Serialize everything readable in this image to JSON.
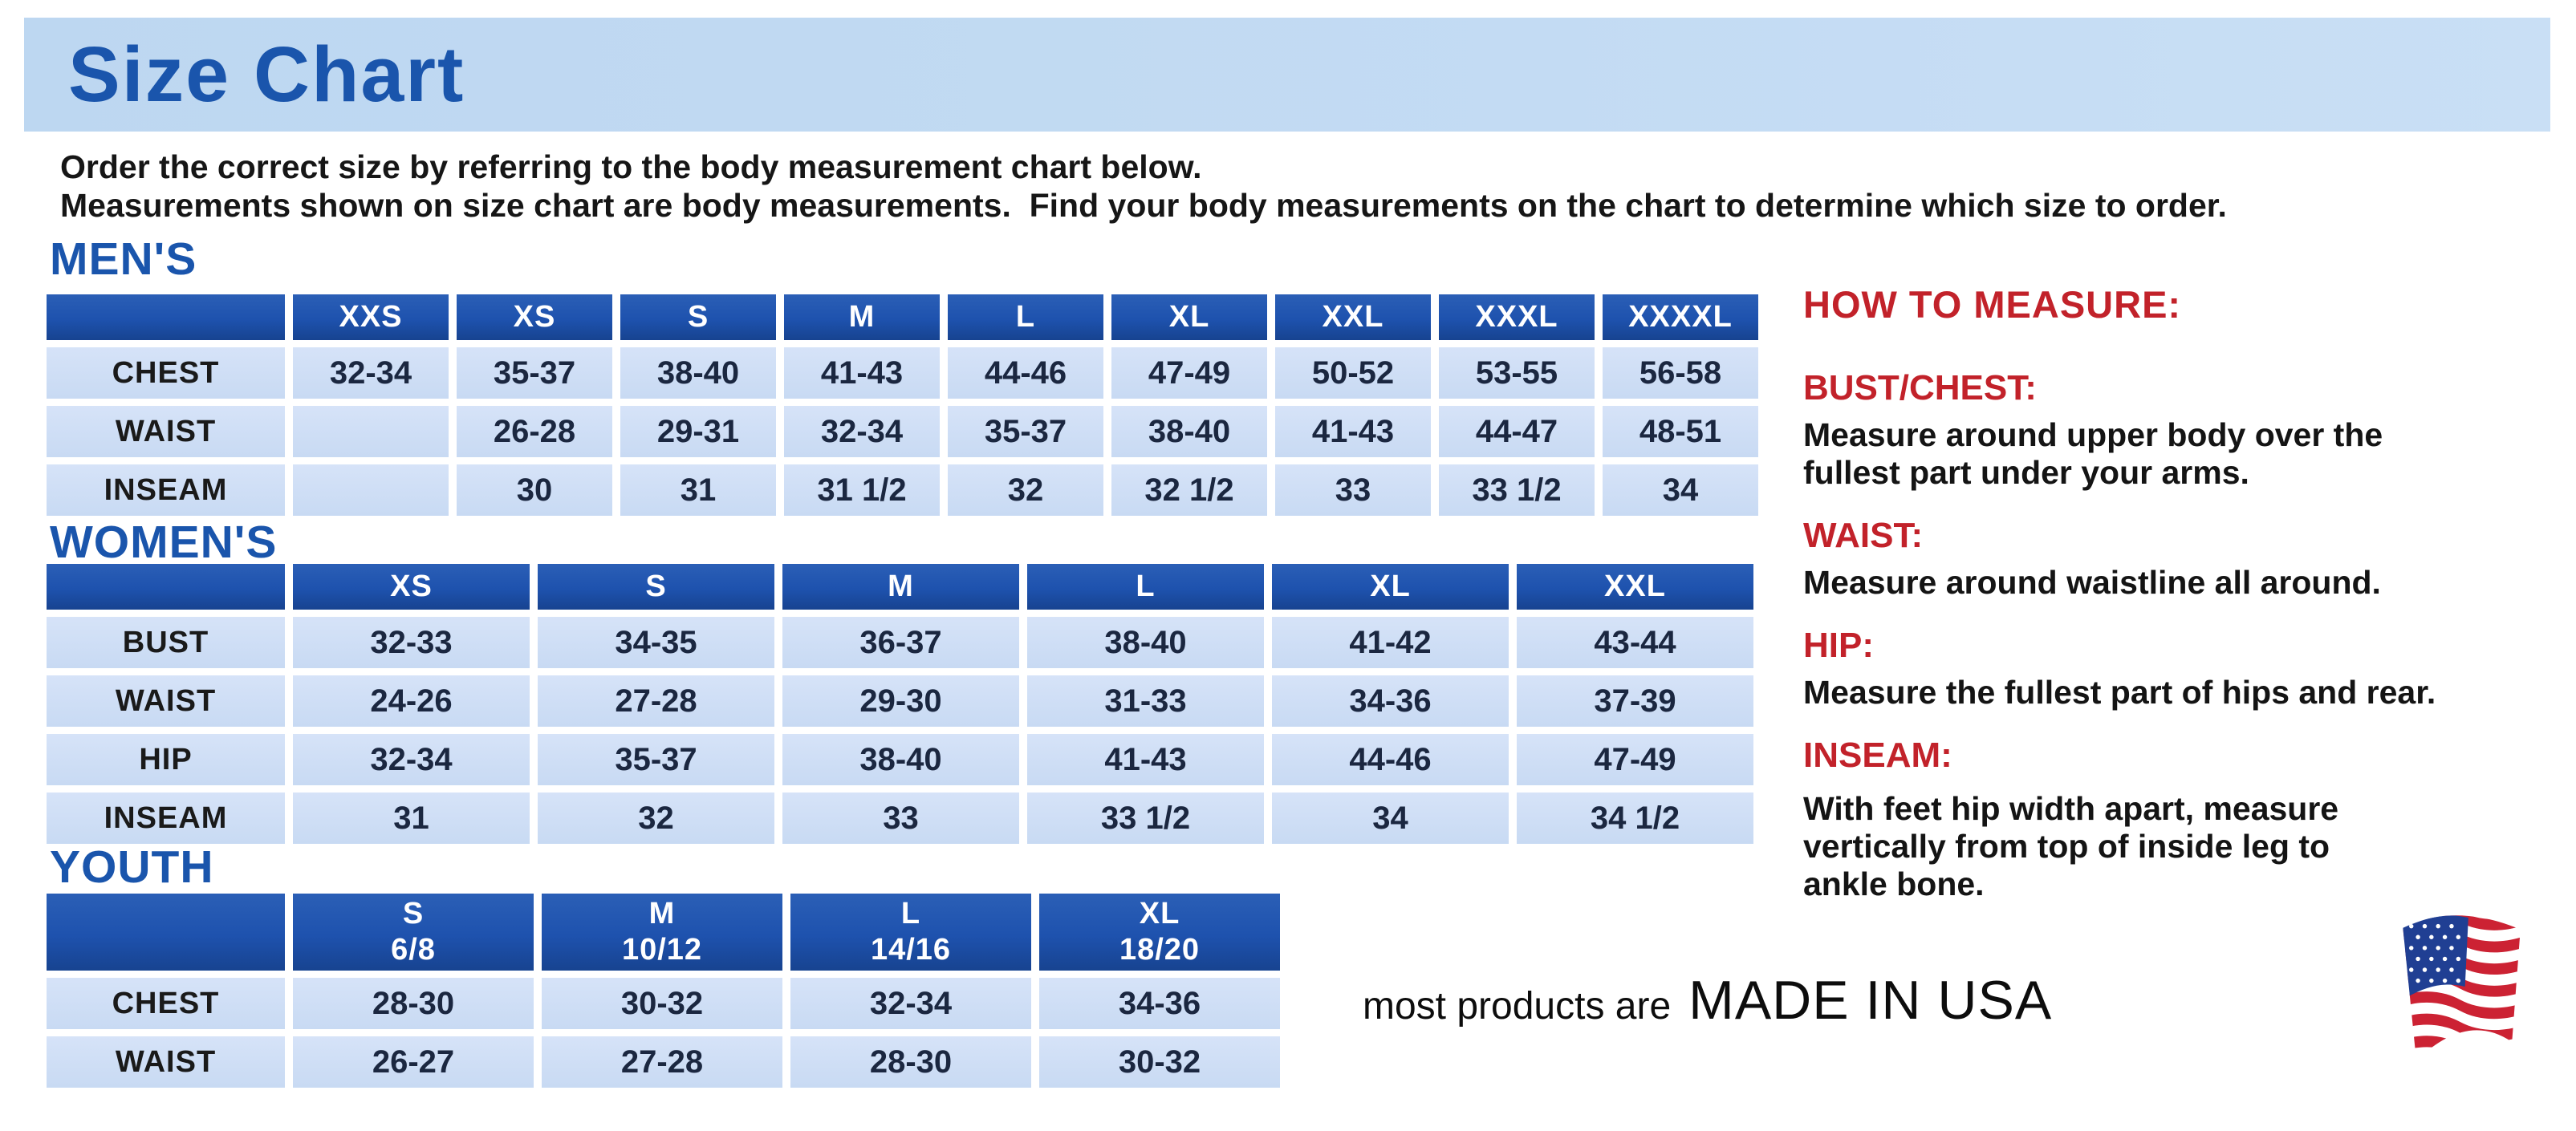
{
  "page": {
    "title": "Size Chart",
    "intro_line1": "Order the correct size by referring to the body measurement chart below.",
    "intro_line2": "Measurements shown on size chart are body measurements.  Find your body measurements on the chart to determine which size to order."
  },
  "colors": {
    "accent_blue": "#1a55ac",
    "header_blue": "#1e52ae",
    "cell_light_blue": "#cbdcf4",
    "value_navy": "#1b2740",
    "heading_red": "#c2222a"
  },
  "tables": {
    "mens": {
      "heading": "MEN'S",
      "columns": [
        "XXS",
        "XS",
        "S",
        "M",
        "L",
        "XL",
        "XXL",
        "XXXL",
        "XXXXL"
      ],
      "rows": [
        {
          "label": "CHEST",
          "values": [
            "32-34",
            "35-37",
            "38-40",
            "41-43",
            "44-46",
            "47-49",
            "50-52",
            "53-55",
            "56-58"
          ]
        },
        {
          "label": "WAIST",
          "values": [
            "",
            "26-28",
            "29-31",
            "32-34",
            "35-37",
            "38-40",
            "41-43",
            "44-47",
            "48-51"
          ]
        },
        {
          "label": "INSEAM",
          "values": [
            "",
            "30",
            "31",
            "31 1/2",
            "32",
            "32 1/2",
            "33",
            "33 1/2",
            "34"
          ]
        }
      ]
    },
    "womens": {
      "heading": "WOMEN'S",
      "columns": [
        "XS",
        "S",
        "M",
        "L",
        "XL",
        "XXL"
      ],
      "rows": [
        {
          "label": "BUST",
          "values": [
            "32-33",
            "34-35",
            "36-37",
            "38-40",
            "41-42",
            "43-44"
          ]
        },
        {
          "label": "WAIST",
          "values": [
            "24-26",
            "27-28",
            "29-30",
            "31-33",
            "34-36",
            "37-39"
          ]
        },
        {
          "label": "HIP",
          "values": [
            "32-34",
            "35-37",
            "38-40",
            "41-43",
            "44-46",
            "47-49"
          ]
        },
        {
          "label": "INSEAM",
          "values": [
            "31",
            "32",
            "33",
            "33 1/2",
            "34",
            "34 1/2"
          ]
        }
      ]
    },
    "youth": {
      "heading": "YOUTH",
      "columns": [
        {
          "label": "S",
          "sub": "6/8"
        },
        {
          "label": "M",
          "sub": "10/12"
        },
        {
          "label": "L",
          "sub": "14/16"
        },
        {
          "label": "XL",
          "sub": "18/20"
        }
      ],
      "rows": [
        {
          "label": "CHEST",
          "values": [
            "28-30",
            "30-32",
            "32-34",
            "34-36"
          ]
        },
        {
          "label": "WAIST",
          "values": [
            "26-27",
            "27-28",
            "28-30",
            "30-32"
          ]
        }
      ]
    }
  },
  "how_to_measure": {
    "heading": "HOW TO MEASURE:",
    "items": [
      {
        "label": "BUST/CHEST:",
        "text": "Measure around upper body over the\nfullest part under your arms."
      },
      {
        "label": "WAIST:",
        "text": "Measure around waistline all around."
      },
      {
        "label": "HIP:",
        "text": "Measure the fullest part of hips and rear."
      },
      {
        "label": "INSEAM:",
        "text": "With feet hip width apart, measure\nvertically from top of inside leg to\nankle bone."
      }
    ]
  },
  "footer": {
    "prefix": "most products are",
    "made_in": "MADE IN USA",
    "flag_icon": "usa-flag-icon"
  }
}
